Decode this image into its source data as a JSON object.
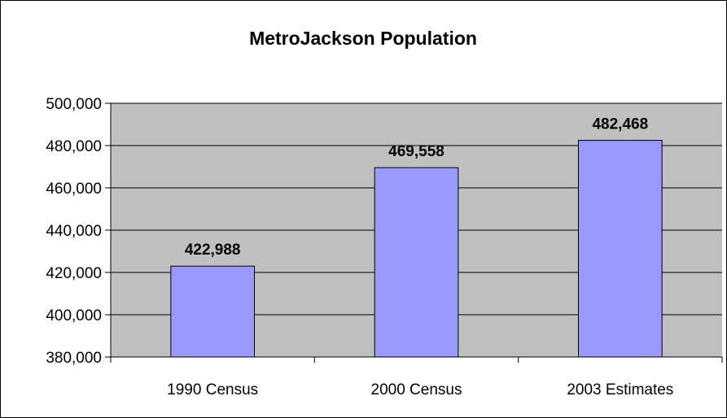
{
  "chart_data": {
    "type": "bar",
    "title": "MetroJackson Population",
    "categories": [
      "1990 Census",
      "2000 Census",
      "2003 Estimates"
    ],
    "values": [
      422988,
      469558,
      482468
    ],
    "data_labels": [
      "422,988",
      "469,558",
      "482,468"
    ],
    "ylim": [
      380000,
      500000
    ],
    "yticks": [
      380000,
      400000,
      420000,
      440000,
      460000,
      480000,
      500000
    ],
    "ytick_labels": [
      "380,000",
      "400,000",
      "420,000",
      "440,000",
      "460,000",
      "480,000",
      "500,000"
    ],
    "xlabel": "",
    "ylabel": "",
    "grid": true,
    "legend": "none",
    "colors": {
      "bar": "#9999FF",
      "plot_background": "#C0C0C0",
      "gridline": "#000000"
    }
  }
}
